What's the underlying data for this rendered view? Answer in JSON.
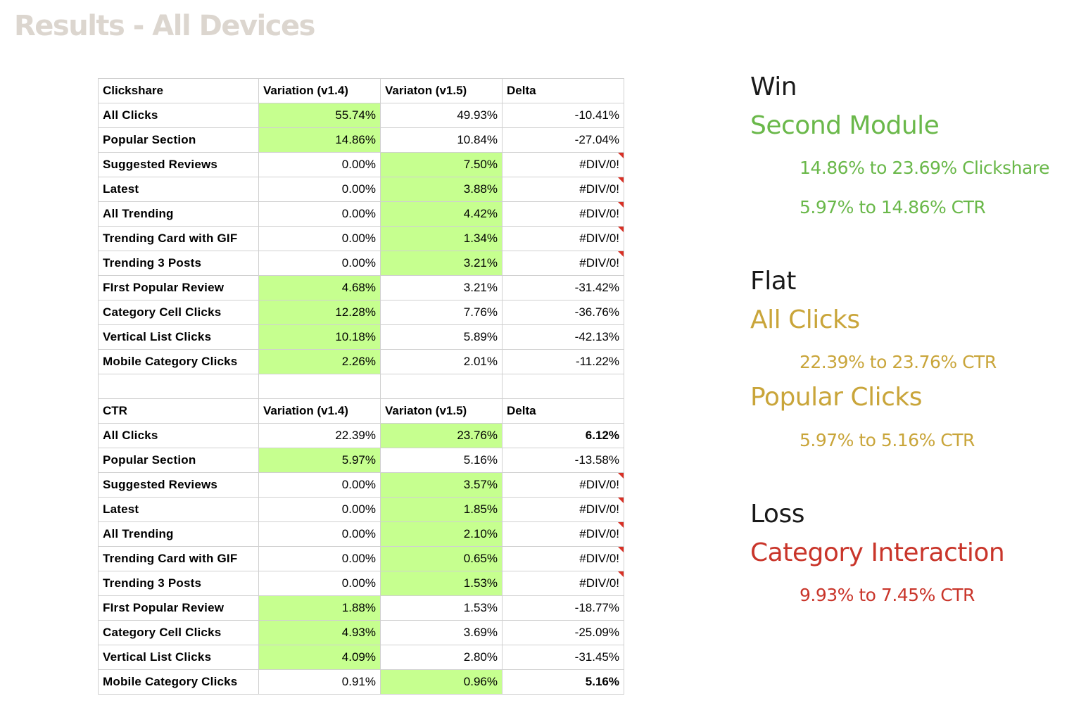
{
  "page_title": "Results - All Devices",
  "clickshare": {
    "headers": [
      "Clickshare",
      "Variation (v1.4)",
      "Variaton (v1.5)",
      "Delta"
    ],
    "rows": [
      {
        "label": "All Clicks",
        "v14": "55.74%",
        "v15": "49.93%",
        "delta": "-10.41%"
      },
      {
        "label": "Popular Section",
        "v14": "14.86%",
        "v15": "10.84%",
        "delta": "-27.04%"
      },
      {
        "label": "Suggested Reviews",
        "v14": "0.00%",
        "v15": "7.50%",
        "delta": "#DIV/0!"
      },
      {
        "label": "Latest",
        "v14": "0.00%",
        "v15": "3.88%",
        "delta": "#DIV/0!"
      },
      {
        "label": "All Trending",
        "v14": "0.00%",
        "v15": "4.42%",
        "delta": "#DIV/0!"
      },
      {
        "label": "Trending Card with GIF",
        "v14": "0.00%",
        "v15": "1.34%",
        "delta": "#DIV/0!"
      },
      {
        "label": "Trending 3 Posts",
        "v14": "0.00%",
        "v15": "3.21%",
        "delta": "#DIV/0!"
      },
      {
        "label": "FIrst Popular Review",
        "v14": "4.68%",
        "v15": "3.21%",
        "delta": "-31.42%"
      },
      {
        "label": "Category Cell Clicks",
        "v14": "12.28%",
        "v15": "7.76%",
        "delta": "-36.76%"
      },
      {
        "label": "Vertical List Clicks",
        "v14": "10.18%",
        "v15": "5.89%",
        "delta": "-42.13%"
      },
      {
        "label": "Mobile Category Clicks",
        "v14": "2.26%",
        "v15": "2.01%",
        "delta": "-11.22%"
      }
    ]
  },
  "ctr": {
    "headers": [
      "CTR",
      "Variation (v1.4)",
      "Variaton (v1.5)",
      "Delta"
    ],
    "rows": [
      {
        "label": "All Clicks",
        "v14": "22.39%",
        "v15": "23.76%",
        "delta": "6.12%"
      },
      {
        "label": "Popular Section",
        "v14": "5.97%",
        "v15": "5.16%",
        "delta": "-13.58%"
      },
      {
        "label": "Suggested Reviews",
        "v14": "0.00%",
        "v15": "3.57%",
        "delta": "#DIV/0!"
      },
      {
        "label": "Latest",
        "v14": "0.00%",
        "v15": "1.85%",
        "delta": "#DIV/0!"
      },
      {
        "label": "All Trending",
        "v14": "0.00%",
        "v15": "2.10%",
        "delta": "#DIV/0!"
      },
      {
        "label": "Trending Card with GIF",
        "v14": "0.00%",
        "v15": "0.65%",
        "delta": "#DIV/0!"
      },
      {
        "label": "Trending 3 Posts",
        "v14": "0.00%",
        "v15": "1.53%",
        "delta": "#DIV/0!"
      },
      {
        "label": "FIrst Popular Review",
        "v14": "1.88%",
        "v15": "1.53%",
        "delta": "-18.77%"
      },
      {
        "label": "Category Cell Clicks",
        "v14": "4.93%",
        "v15": "3.69%",
        "delta": "-25.09%"
      },
      {
        "label": "Vertical List Clicks",
        "v14": "4.09%",
        "v15": "2.80%",
        "delta": "-31.45%"
      },
      {
        "label": "Mobile Category Clicks",
        "v14": "0.91%",
        "v15": "0.96%",
        "delta": "5.16%"
      }
    ]
  },
  "summary": {
    "win": {
      "heading": "Win",
      "item": "Second Module",
      "lines": [
        "14.86% to 23.69% Clickshare",
        "5.97% to 14.86% CTR"
      ]
    },
    "flat": {
      "heading": "Flat",
      "item1": "All Clicks",
      "item1_line": "22.39% to 23.76% CTR",
      "item2": "Popular Clicks",
      "item2_line": "5.97% to 5.16% CTR"
    },
    "loss": {
      "heading": "Loss",
      "item": "Category Interaction",
      "line": "9.93% to 7.45% CTR"
    }
  },
  "colors": {
    "title": "#dcd6cf",
    "highlight": "#c6ff8f",
    "win": "#6ab84a",
    "flat": "#c9a53a",
    "loss": "#c9352a",
    "comment_flag": "#d93025"
  }
}
